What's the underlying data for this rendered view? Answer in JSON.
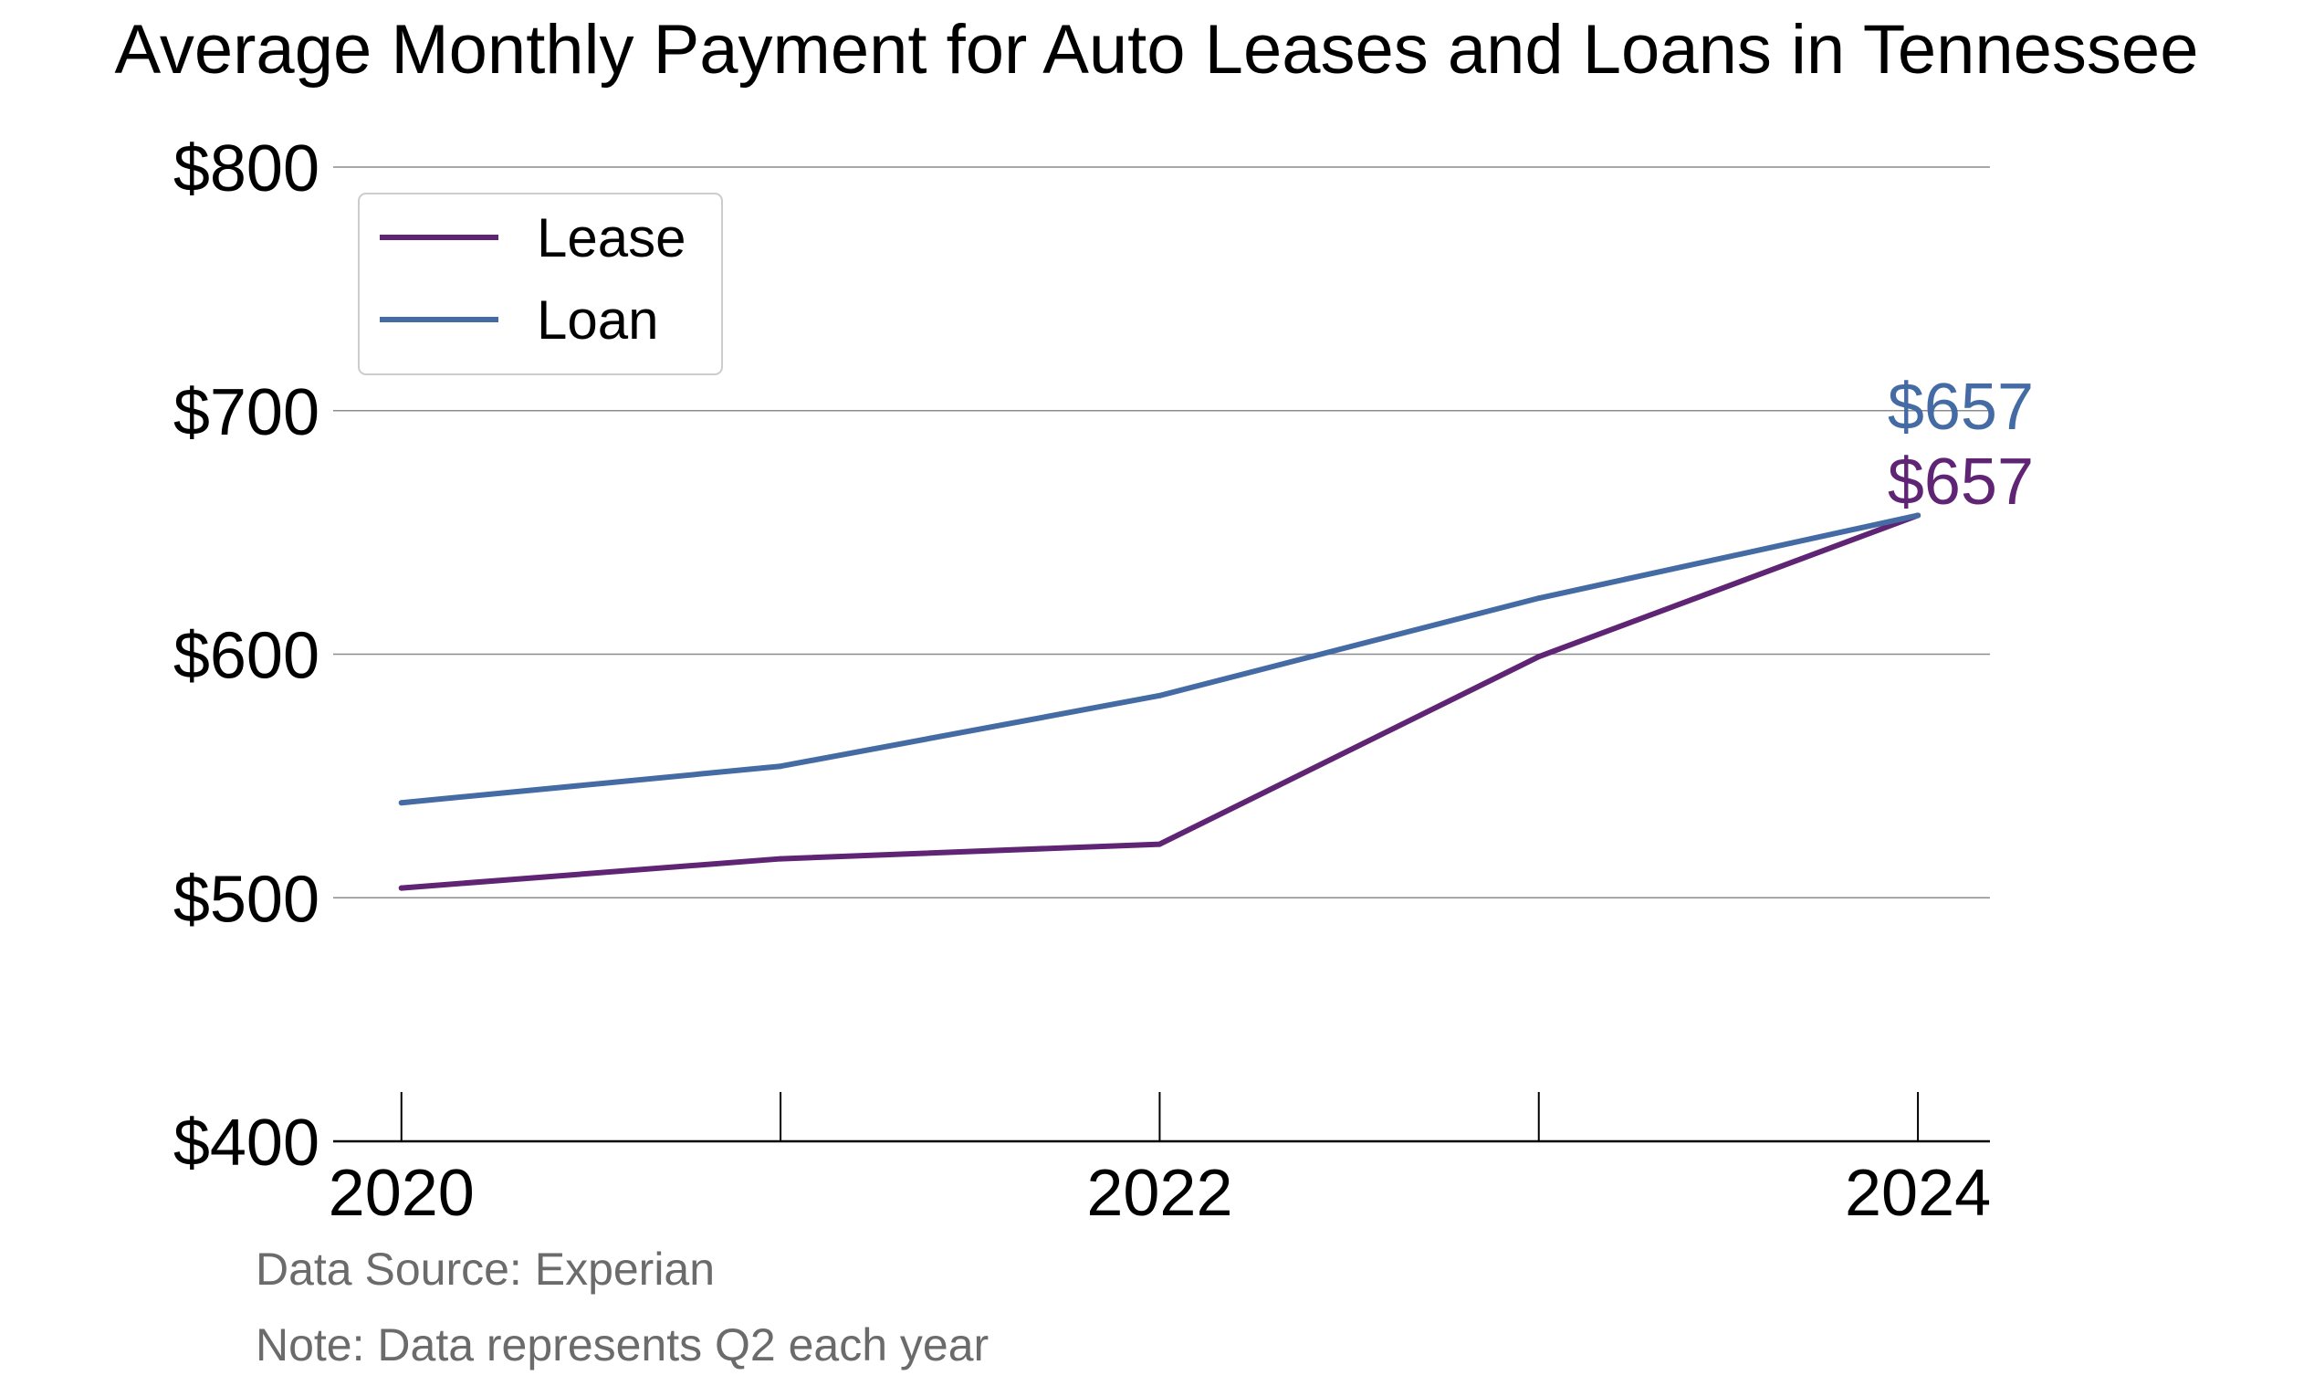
{
  "chart_data": {
    "type": "line",
    "title": "Average Monthly Payment for Auto Leases and Loans in Tennessee",
    "xlabel": "",
    "ylabel": "",
    "x": [
      2020,
      2021,
      2022,
      2023,
      2024
    ],
    "x_tick_values": [
      2020,
      2021,
      2022,
      2023,
      2024
    ],
    "x_tick_labels": [
      "2020",
      "",
      "2022",
      "",
      "2024"
    ],
    "xlim": [
      2019.82,
      2024.19
    ],
    "ylim": [
      400,
      800
    ],
    "y_ticks": [
      400,
      500,
      600,
      700,
      800
    ],
    "y_tick_labels": [
      "$400",
      "$500",
      "$600",
      "$700",
      "$800"
    ],
    "grid": "horizontal",
    "legend_position": "top-left",
    "series": [
      {
        "name": "Lease",
        "color": "#5f2473",
        "values": [
          504,
          516,
          522,
          599,
          657
        ],
        "end_label": "$657"
      },
      {
        "name": "Loan",
        "color": "#446ba3",
        "values": [
          539,
          554,
          583,
          623,
          657
        ],
        "end_label": "$657"
      }
    ],
    "footnotes": [
      "Data Source: Experian",
      "Note: Data represents Q2 each year"
    ]
  }
}
